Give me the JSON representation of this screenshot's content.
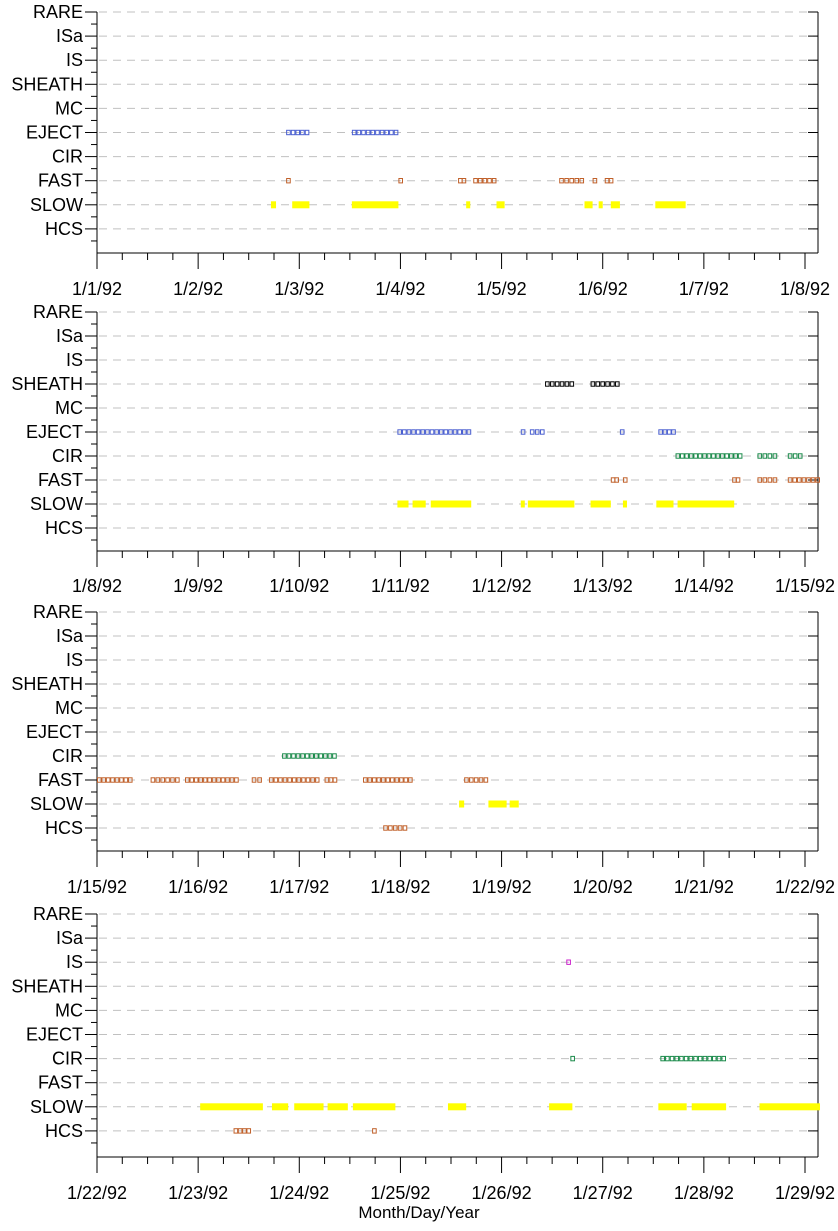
{
  "chart_data": {
    "type": "scatter",
    "xlabel": "Month/Day/Year",
    "categories": [
      "RARE",
      "ISa",
      "IS",
      "SHEATH",
      "MC",
      "EJECT",
      "CIR",
      "FAST",
      "SLOW",
      "HCS"
    ],
    "colors": {
      "EJECT": "#4a5fd0",
      "SHEATH": "#000000",
      "CIR": "#1a8a4a",
      "FAST": "#c0602a",
      "SLOW": "#ffff00",
      "HCS": "#c0602a",
      "IS": "#cc22cc",
      "grid": "#c0c0c0"
    },
    "panels": [
      {
        "ticks": [
          "1/1/92",
          "1/2/92",
          "1/3/92",
          "1/4/92",
          "1/5/92",
          "1/6/92",
          "1/7/92",
          "1/8/92"
        ],
        "xlim": [
          0,
          7
        ],
        "series": [
          {
            "category": "EJECT",
            "style": "open",
            "segments": [
              [
                1.87,
                2.1
              ],
              [
                2.52,
                2.98
              ]
            ]
          },
          {
            "category": "FAST",
            "style": "open",
            "segments": [
              [
                1.87,
                1.93
              ],
              [
                2.98,
                3.04
              ],
              [
                3.57,
                3.64
              ],
              [
                3.72,
                3.95
              ],
              [
                4.57,
                4.82
              ],
              [
                4.9,
                4.94
              ],
              [
                5.02,
                5.1
              ]
            ]
          },
          {
            "category": "SLOW",
            "style": "filled",
            "segments": [
              [
                1.72,
                1.77
              ],
              [
                1.93,
                2.1
              ],
              [
                2.52,
                2.98
              ],
              [
                3.65,
                3.69
              ],
              [
                3.95,
                4.03
              ],
              [
                4.82,
                4.9
              ],
              [
                4.96,
                5.0
              ],
              [
                5.08,
                5.17
              ],
              [
                5.52,
                5.82
              ]
            ]
          }
        ]
      },
      {
        "ticks": [
          "1/8/92",
          "1/9/92",
          "1/10/92",
          "1/11/92",
          "1/12/92",
          "1/13/92",
          "1/14/92",
          "1/15/92"
        ],
        "xlim": [
          0,
          7
        ],
        "series": [
          {
            "category": "SHEATH",
            "style": "open",
            "segments": [
              [
                4.43,
                4.72
              ],
              [
                4.88,
                5.17
              ]
            ]
          },
          {
            "category": "EJECT",
            "style": "open",
            "segments": [
              [
                2.97,
                3.7
              ],
              [
                4.19,
                4.22
              ],
              [
                4.28,
                4.43
              ],
              [
                5.17,
                5.23
              ],
              [
                5.55,
                5.72
              ]
            ]
          },
          {
            "category": "CIR",
            "style": "open",
            "segments": [
              [
                5.72,
                6.38
              ],
              [
                6.53,
                6.73
              ],
              [
                6.83,
                6.98
              ]
            ]
          },
          {
            "category": "FAST",
            "style": "open",
            "segments": [
              [
                5.08,
                5.15
              ],
              [
                5.2,
                5.24
              ],
              [
                6.28,
                6.35
              ],
              [
                6.53,
                6.73
              ],
              [
                6.83,
                7.15
              ]
            ]
          },
          {
            "category": "SLOW",
            "style": "filled",
            "segments": [
              [
                2.97,
                3.08
              ],
              [
                3.12,
                3.25
              ],
              [
                3.3,
                3.7
              ],
              [
                4.19,
                4.22
              ],
              [
                4.26,
                4.72
              ],
              [
                4.88,
                5.08
              ],
              [
                5.2,
                5.24
              ],
              [
                5.53,
                5.7
              ],
              [
                5.74,
                6.3
              ]
            ]
          }
        ]
      },
      {
        "ticks": [
          "1/15/92",
          "1/16/92",
          "1/17/92",
          "1/18/92",
          "1/19/92",
          "1/20/92",
          "1/21/92",
          "1/22/92"
        ],
        "xlim": [
          0,
          7
        ],
        "series": [
          {
            "category": "CIR",
            "style": "open",
            "segments": [
              [
                1.83,
                2.37
              ]
            ]
          },
          {
            "category": "FAST",
            "style": "open",
            "segments": [
              [
                0,
                0.35
              ],
              [
                0.53,
                0.82
              ],
              [
                0.87,
                1.4
              ],
              [
                1.53,
                1.64
              ],
              [
                1.7,
                2.2
              ],
              [
                2.25,
                2.37
              ],
              [
                2.63,
                3.12
              ],
              [
                3.63,
                3.87
              ]
            ]
          },
          {
            "category": "SLOW",
            "style": "filled",
            "segments": [
              [
                3.58,
                3.63
              ],
              [
                3.87,
                4.05
              ],
              [
                4.08,
                4.17
              ]
            ]
          },
          {
            "category": "HCS",
            "style": "open",
            "segments": [
              [
                2.83,
                3.07
              ]
            ]
          }
        ]
      },
      {
        "ticks": [
          "1/22/92",
          "1/23/92",
          "1/24/92",
          "1/25/92",
          "1/26/92",
          "1/27/92",
          "1/28/92",
          "1/29/92"
        ],
        "xlim": [
          0,
          7
        ],
        "series": [
          {
            "category": "IS",
            "style": "open",
            "segments": [
              [
                4.64,
                4.67
              ]
            ]
          },
          {
            "category": "CIR",
            "style": "open",
            "segments": [
              [
                4.68,
                4.71
              ],
              [
                5.57,
                6.22
              ]
            ]
          },
          {
            "category": "SLOW",
            "style": "filled",
            "segments": [
              [
                1.02,
                1.64
              ],
              [
                1.73,
                1.89
              ],
              [
                1.95,
                2.24
              ],
              [
                2.28,
                2.48
              ],
              [
                2.53,
                2.95
              ],
              [
                3.47,
                3.65
              ],
              [
                4.47,
                4.7
              ],
              [
                5.55,
                5.83
              ],
              [
                5.88,
                6.22
              ],
              [
                6.55,
                7.15
              ]
            ]
          },
          {
            "category": "HCS",
            "style": "open",
            "segments": [
              [
                1.35,
                1.52
              ],
              [
                2.72,
                2.76
              ]
            ]
          }
        ]
      }
    ]
  }
}
